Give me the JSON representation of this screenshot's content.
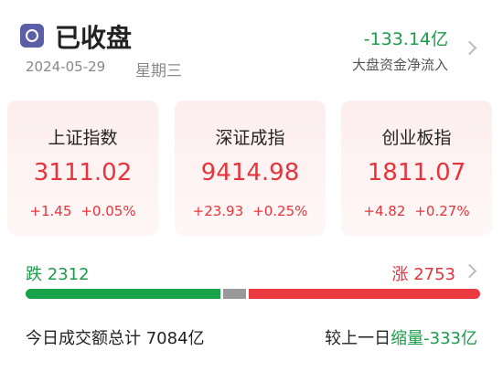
{
  "header": {
    "status": "已收盘",
    "date": "2024-05-29",
    "weekday": "星期三",
    "net_flow": "-133.14亿",
    "net_flow_label": "大盘资金净流入"
  },
  "indices": [
    {
      "name": "上证指数",
      "value": "3111.02",
      "change": "+1.45",
      "change_pct": "+0.05%"
    },
    {
      "name": "深证成指",
      "value": "9414.98",
      "change": "+23.93",
      "change_pct": "+0.25%"
    },
    {
      "name": "创业板指",
      "value": "1811.07",
      "change": "+4.82",
      "change_pct": "+0.27%"
    }
  ],
  "breadth": {
    "fall_label": "跌",
    "fall": "2312",
    "rise_label": "涨",
    "rise": "2753"
  },
  "turnover": {
    "label": "今日成交额总计",
    "amount": "7084亿",
    "compare_label": "较上一日",
    "change_label": "缩量",
    "change": "-333亿"
  }
}
